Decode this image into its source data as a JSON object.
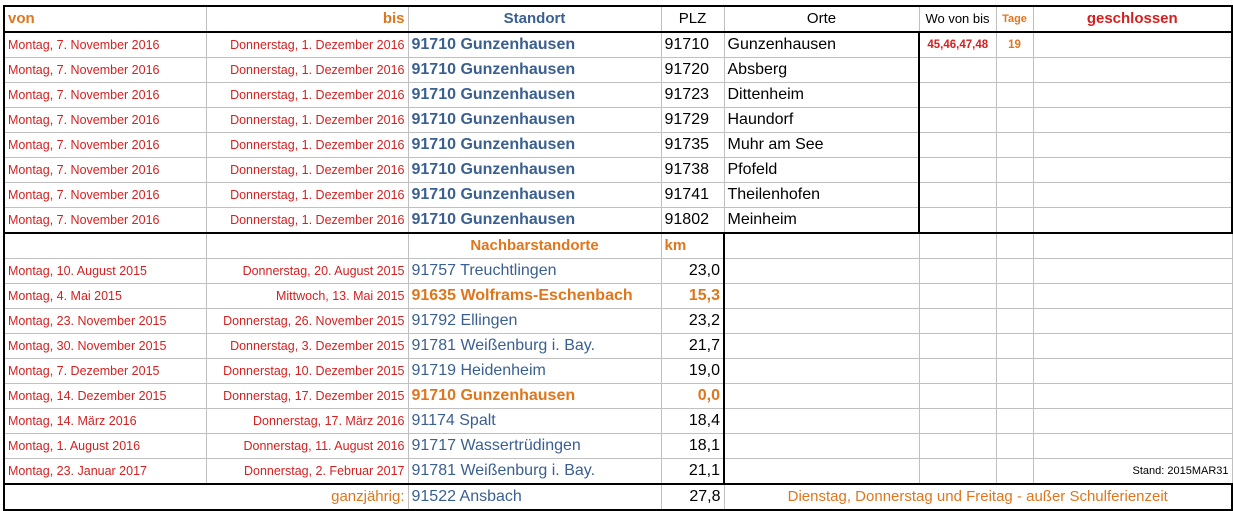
{
  "header": {
    "von": "von",
    "bis": "bis",
    "standort": "Standort",
    "plz": "PLZ",
    "orte": "Orte",
    "wo_von_bis": "Wo von bis",
    "tage": "Tage",
    "geschlossen": "geschlossen"
  },
  "main_rows": [
    {
      "von": "Montag, 7. November 2016",
      "bis": "Donnerstag, 1. Dezember 2016",
      "standort": "91710 Gunzenhausen",
      "plz": "91710",
      "ort": "Gunzenhausen",
      "wo": "45,46,47,48",
      "tage": "19"
    },
    {
      "von": "Montag, 7. November 2016",
      "bis": "Donnerstag, 1. Dezember 2016",
      "standort": "91710 Gunzenhausen",
      "plz": "91720",
      "ort": "Absberg",
      "wo": "",
      "tage": ""
    },
    {
      "von": "Montag, 7. November 2016",
      "bis": "Donnerstag, 1. Dezember 2016",
      "standort": "91710 Gunzenhausen",
      "plz": "91723",
      "ort": "Dittenheim",
      "wo": "",
      "tage": ""
    },
    {
      "von": "Montag, 7. November 2016",
      "bis": "Donnerstag, 1. Dezember 2016",
      "standort": "91710 Gunzenhausen",
      "plz": "91729",
      "ort": "Haundorf",
      "wo": "",
      "tage": ""
    },
    {
      "von": "Montag, 7. November 2016",
      "bis": "Donnerstag, 1. Dezember 2016",
      "standort": "91710 Gunzenhausen",
      "plz": "91735",
      "ort": "Muhr am See",
      "wo": "",
      "tage": ""
    },
    {
      "von": "Montag, 7. November 2016",
      "bis": "Donnerstag, 1. Dezember 2016",
      "standort": "91710 Gunzenhausen",
      "plz": "91738",
      "ort": "Pfofeld",
      "wo": "",
      "tage": ""
    },
    {
      "von": "Montag, 7. November 2016",
      "bis": "Donnerstag, 1. Dezember 2016",
      "standort": "91710 Gunzenhausen",
      "plz": "91741",
      "ort": "Theilenhofen",
      "wo": "",
      "tage": ""
    },
    {
      "von": "Montag, 7. November 2016",
      "bis": "Donnerstag, 1. Dezember 2016",
      "standort": "91710 Gunzenhausen",
      "plz": "91802",
      "ort": "Meinheim",
      "wo": "",
      "tage": ""
    }
  ],
  "neighbor_header": {
    "title": "Nachbarstandorte",
    "km": "km"
  },
  "neighbor_rows": [
    {
      "von": "Montag, 10. August 2015",
      "bis": "Donnerstag, 20. August 2015",
      "standort": "91757 Treuchtlingen",
      "km": "23,0",
      "highlight": false
    },
    {
      "von": "Montag, 4. Mai 2015",
      "bis": "Mittwoch, 13. Mai 2015",
      "standort": "91635 Wolframs-Eschenbach",
      "km": "15,3",
      "highlight": true
    },
    {
      "von": "Montag, 23. November 2015",
      "bis": "Donnerstag, 26. November 2015",
      "standort": "91792 Ellingen",
      "km": "23,2",
      "highlight": false
    },
    {
      "von": "Montag, 30. November 2015",
      "bis": "Donnerstag, 3. Dezember 2015",
      "standort": "91781 Weißenburg i. Bay.",
      "km": "21,7",
      "highlight": false
    },
    {
      "von": "Montag, 7. Dezember 2015",
      "bis": "Donnerstag, 10. Dezember 2015",
      "standort": "91719 Heidenheim",
      "km": "19,0",
      "highlight": false
    },
    {
      "von": "Montag, 14. Dezember 2015",
      "bis": "Donnerstag, 17. Dezember 2015",
      "standort": "91710 Gunzenhausen",
      "km": "0,0",
      "highlight": true
    },
    {
      "von": "Montag, 14. März 2016",
      "bis": "Donnerstag, 17. März 2016",
      "standort": "91174 Spalt",
      "km": "18,4",
      "highlight": false
    },
    {
      "von": "Montag, 1. August 2016",
      "bis": "Donnerstag, 11. August 2016",
      "standort": "91717 Wassertrüdingen",
      "km": "18,1",
      "highlight": false
    },
    {
      "von": "Montag, 23. Januar 2017",
      "bis": "Donnerstag, 2. Februar 2017",
      "standort": "91781 Weißenburg i. Bay.",
      "km": "21,1",
      "highlight": false
    }
  ],
  "stand": "Stand: 2015MAR31",
  "footer": {
    "label": "ganzjährig:",
    "standort": "91522 Ansbach",
    "km": "27,8",
    "note": "Dienstag, Donnerstag und Freitag - außer Schulferienzeit"
  },
  "colors": {
    "red": "#d42020",
    "orange": "#e0761c",
    "blue": "#3a5f91"
  }
}
